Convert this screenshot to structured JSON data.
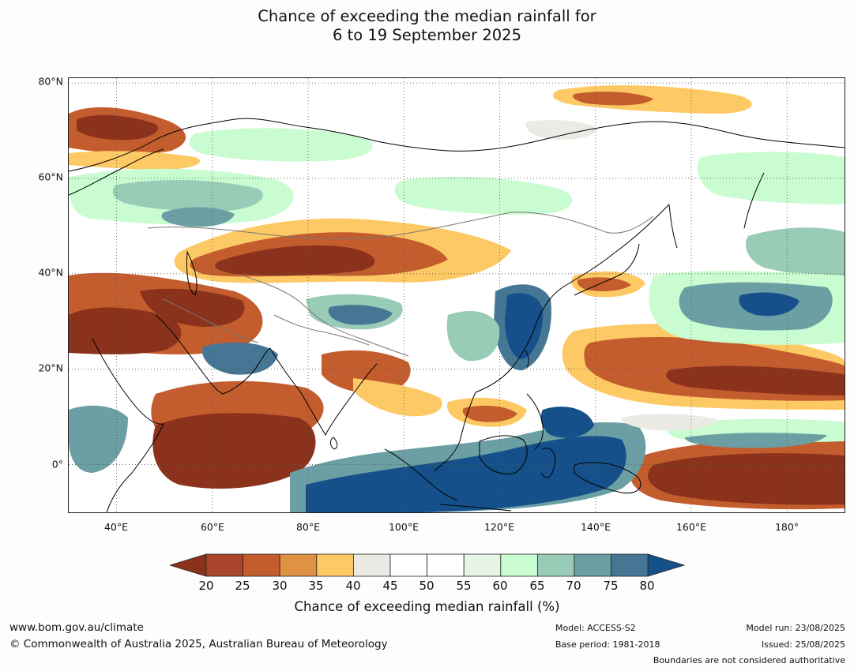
{
  "title": {
    "line1": "Chance of exceeding the median rainfall for",
    "line2": "6 to 19 September 2025"
  },
  "map": {
    "lat_labels": [
      "80°N",
      "60°N",
      "40°N",
      "20°N",
      "0°"
    ],
    "lon_labels": [
      "40°E",
      "60°E",
      "80°E",
      "100°E",
      "120°E",
      "140°E",
      "160°E",
      "180°"
    ],
    "lon_range": [
      30,
      192
    ],
    "lat_range": [
      -10,
      81
    ]
  },
  "colorbar": {
    "ticks": [
      "20",
      "25",
      "30",
      "35",
      "40",
      "45",
      "50",
      "55",
      "60",
      "65",
      "70",
      "75",
      "80"
    ],
    "label": "Chance of exceeding median rainfall (%)",
    "colors": {
      "below20": "#8b321c",
      "20-25": "#a8452a",
      "25-30": "#c45d2e",
      "30-35": "#df9144",
      "35-40": "#fdc965",
      "40-45": "#eceae4",
      "45-50": "#ffffff",
      "50-55": "#ffffff",
      "55-60": "#e6f5e6",
      "60-65": "#c9fcd0",
      "65-70": "#99ccb6",
      "70-75": "#6b9fa4",
      "75-80": "#457795",
      "above80": "#15508a"
    }
  },
  "footer": {
    "website": "www.bom.gov.au/climate",
    "copyright": "© Commonwealth of Australia 2025, Australian Bureau of Meteorology",
    "model": "Model: ACCESS-S2",
    "base_period": "Base period: 1981-2018",
    "model_run": "Model run: 23/08/2025",
    "issued": "Issued: 25/08/2025",
    "disclaimer": "Boundaries are not considered authoritative"
  }
}
